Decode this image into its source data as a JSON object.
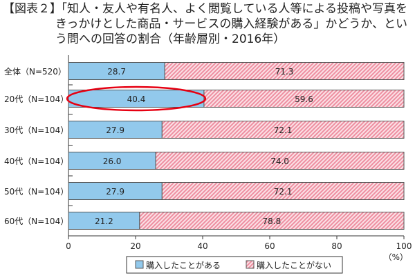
{
  "title": {
    "label": "【図表２】",
    "text": "「知人・友人や有名人、よく閲覧している人等による投稿や写真をきっかけとした商品・サービスの購入経験がある」かどうか、という問への回答の割合（年齢層別・2016年）"
  },
  "chart_data": {
    "type": "bar",
    "stacked": true,
    "orientation": "horizontal",
    "categories": [
      "全体（N=520）",
      "20代（N=104）",
      "30代（N=104）",
      "40代（N=104）",
      "50代（N=104）",
      "60代（N=104）"
    ],
    "series": [
      {
        "name": "購入したことがある",
        "values": [
          28.7,
          40.4,
          27.9,
          26.0,
          27.9,
          21.2
        ],
        "color": "#92c9ec"
      },
      {
        "name": "購入したことがない",
        "values": [
          71.3,
          59.6,
          72.1,
          74.0,
          72.1,
          78.8
        ],
        "color": "#f4b3bf",
        "pattern": "diagonal-hatch"
      }
    ],
    "xlim": [
      0,
      100
    ],
    "xticks": [
      0,
      20,
      40,
      60,
      80,
      100
    ],
    "xunit": "（%）",
    "legend": "bottom",
    "highlight": {
      "category": "20代（N=104）",
      "color": "#e60012",
      "shape": "ellipse"
    }
  }
}
